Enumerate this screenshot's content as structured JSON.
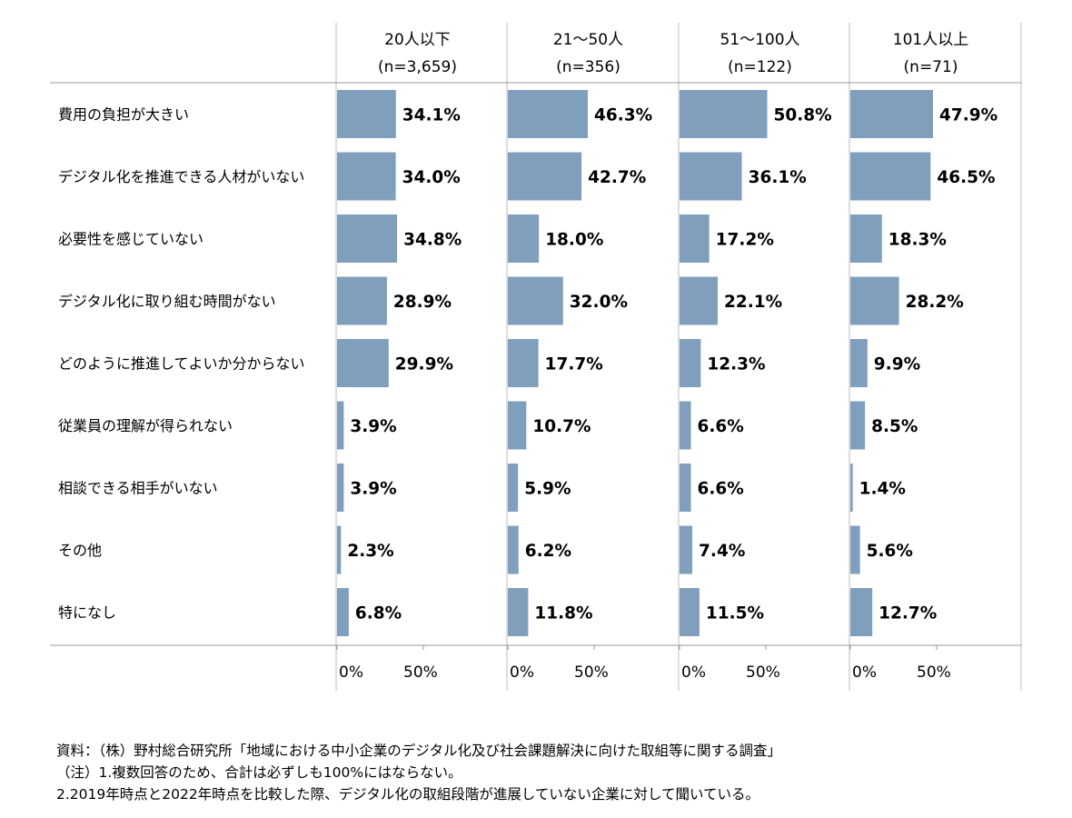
{
  "chart_data": {
    "type": "bar",
    "orientation": "horizontal",
    "categories": [
      "費用の負担が大きい",
      "デジタル化を推進できる人材がいない",
      "必要性を感じていない",
      "デジタル化に取り組む時間がない",
      "どのように推進してよいか分からない",
      "従業員の理解が得られない",
      "相談できる相手がいない",
      "その他",
      "特になし"
    ],
    "series": [
      {
        "name": "20人以下",
        "n_label": "(n=3,659)",
        "values": [
          34.1,
          34.0,
          34.8,
          28.9,
          29.9,
          3.9,
          3.9,
          2.3,
          6.8
        ]
      },
      {
        "name": "21～50人",
        "n_label": "(n=356)",
        "values": [
          46.3,
          42.7,
          18.0,
          32.0,
          17.7,
          10.7,
          5.9,
          6.2,
          11.8
        ]
      },
      {
        "name": "51～100人",
        "n_label": "(n=122)",
        "values": [
          50.8,
          36.1,
          17.2,
          22.1,
          12.3,
          6.6,
          6.6,
          7.4,
          11.5
        ]
      },
      {
        "name": "101人以上",
        "n_label": "(n=71)",
        "values": [
          47.9,
          46.5,
          18.3,
          28.2,
          9.9,
          8.5,
          1.4,
          5.6,
          12.7
        ]
      }
    ],
    "axis_ticks": [
      "0%",
      "50%"
    ],
    "xlim": [
      0,
      100
    ],
    "value_suffix": "%",
    "bar_color": "#7f9fbd",
    "grid": false
  },
  "notes": [
    "資料：（株）野村総合研究所「地域における中小企業のデジタル化及び社会課題解決に向けた取組等に関する調査」",
    "（注）1.複数回答のため、合計は必ずしも100%にはならない。",
    "2.2019年時点と2022年時点を比較した際、デジタル化の取組段階が進展していない企業に対して聞いている。"
  ]
}
